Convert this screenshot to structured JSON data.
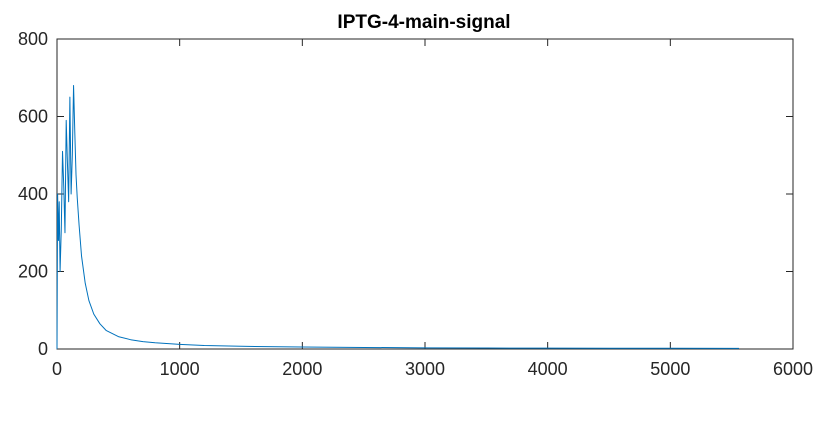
{
  "chart_data": {
    "type": "line",
    "title": "IPTG-4-main-signal",
    "xlabel": "",
    "ylabel": "",
    "xlim": [
      0,
      6000
    ],
    "ylim": [
      0,
      800
    ],
    "x_ticks": [
      0,
      1000,
      2000,
      3000,
      4000,
      5000,
      6000
    ],
    "y_ticks": [
      0,
      200,
      400,
      600,
      800
    ],
    "grid": false,
    "series": [
      {
        "color": "#0072BD",
        "points": [
          [
            0,
            0
          ],
          [
            5,
            400
          ],
          [
            12,
            280
          ],
          [
            18,
            380
          ],
          [
            25,
            200
          ],
          [
            35,
            310
          ],
          [
            45,
            510
          ],
          [
            55,
            420
          ],
          [
            65,
            300
          ],
          [
            75,
            590
          ],
          [
            85,
            480
          ],
          [
            95,
            380
          ],
          [
            105,
            650
          ],
          [
            115,
            400
          ],
          [
            125,
            500
          ],
          [
            135,
            680
          ],
          [
            145,
            560
          ],
          [
            155,
            450
          ],
          [
            165,
            390
          ],
          [
            180,
            320
          ],
          [
            200,
            240
          ],
          [
            230,
            170
          ],
          [
            260,
            125
          ],
          [
            300,
            90
          ],
          [
            350,
            65
          ],
          [
            400,
            48
          ],
          [
            500,
            32
          ],
          [
            600,
            24
          ],
          [
            700,
            19
          ],
          [
            800,
            16
          ],
          [
            1000,
            12
          ],
          [
            1200,
            9
          ],
          [
            1500,
            7
          ],
          [
            2000,
            5
          ],
          [
            2500,
            4
          ],
          [
            3000,
            3
          ],
          [
            3500,
            2.5
          ],
          [
            4000,
            2.2
          ],
          [
            4500,
            2
          ],
          [
            5000,
            1.8
          ],
          [
            5560,
            1.6
          ]
        ]
      }
    ]
  }
}
